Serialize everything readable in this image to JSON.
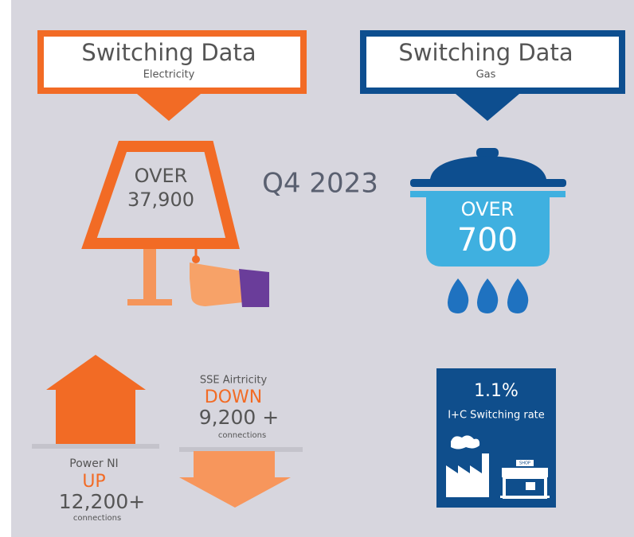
{
  "electricity": {
    "title": "Switching Data",
    "subtitle": "Electricity",
    "over": "OVER",
    "value": "37,900"
  },
  "period": "Q4 2023",
  "gas": {
    "title": "Switching Data",
    "subtitle": "Gas",
    "over": "OVER",
    "value": "700"
  },
  "power_ni": {
    "name": "Power NI",
    "direction": "UP",
    "value": "12,200+",
    "unit": "connections"
  },
  "sse": {
    "name": "SSE Airtricity",
    "direction": "DOWN",
    "value": "9,200 +",
    "unit": "connections"
  },
  "ic": {
    "value": "1.1%",
    "label": "I+C Switching rate",
    "shop": "SHOP"
  }
}
